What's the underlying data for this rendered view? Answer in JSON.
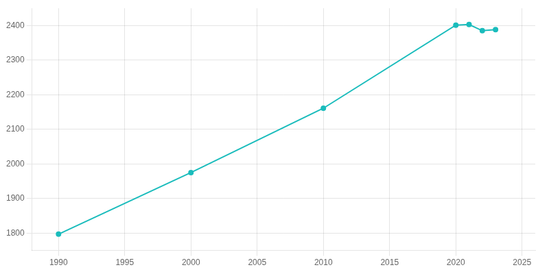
{
  "chart_data": {
    "type": "line",
    "x": [
      1990,
      2000,
      2010,
      2020,
      2021,
      2022,
      2023
    ],
    "values": [
      1797,
      1975,
      2161,
      2401,
      2403,
      2385,
      2388
    ],
    "color": "#1abcbc",
    "marker": "circle",
    "xlim": [
      1988,
      2026
    ],
    "ylim": [
      1750,
      2450
    ],
    "xticks": [
      1990,
      1995,
      2000,
      2005,
      2010,
      2015,
      2020,
      2025
    ],
    "yticks": [
      1800,
      1900,
      2000,
      2100,
      2200,
      2300,
      2400
    ],
    "grid": true
  }
}
